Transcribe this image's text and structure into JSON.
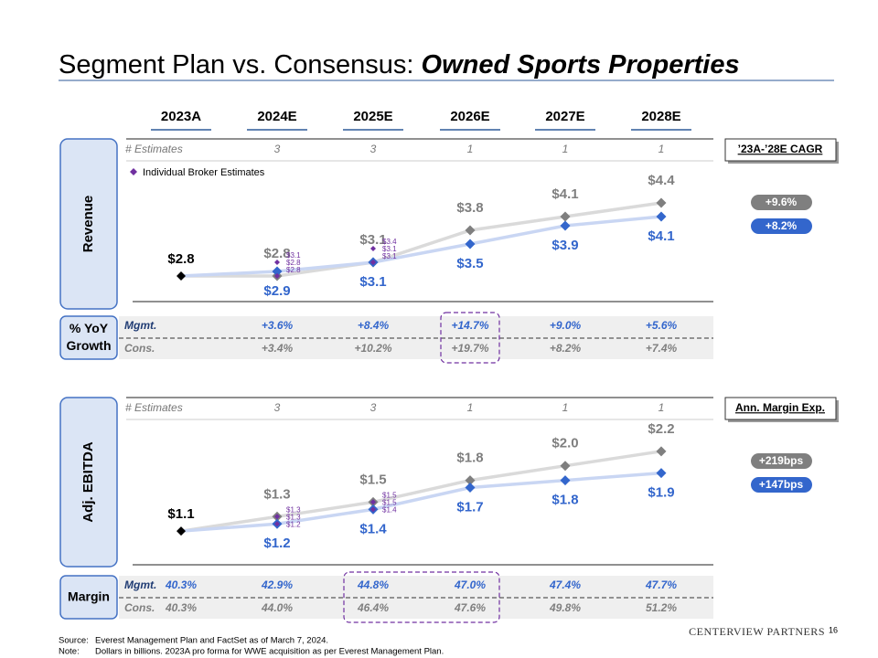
{
  "title": "Segment Plan vs. Consensus: ",
  "title_emphasis": "Owned Sports Properties",
  "columns": [
    "2023A",
    "2024E",
    "2025E",
    "2026E",
    "2027E",
    "2028E"
  ],
  "chart_data": [
    {
      "type": "line",
      "section_label": "Revenue",
      "estimates_label": "# Estimates",
      "estimates": [
        null,
        3,
        3,
        1,
        1,
        1
      ],
      "ylim": [
        2.0,
        4.8
      ],
      "actual": {
        "value": 2.8,
        "label": "$2.8",
        "color": "#000000"
      },
      "series": [
        {
          "color": "#7f7f7f",
          "values": [
            null,
            2.8,
            3.1,
            3.8,
            4.1,
            4.4
          ],
          "value_labels": [
            null,
            "$2.8",
            "$3.1",
            "$3.8",
            "$4.1",
            "$4.4"
          ]
        },
        {
          "color": "#3366cc",
          "values": [
            null,
            2.9,
            3.1,
            3.5,
            3.9,
            4.1
          ],
          "value_labels": [
            null,
            "$2.9",
            "$3.1",
            "$3.5",
            "$3.9",
            "$4.1"
          ]
        }
      ],
      "broker_estimates": {
        "name": "Individual Broker Estimates",
        "color": "#7030a0",
        "values": [
          [],
          [
            3.1,
            2.8,
            2.8
          ],
          [
            3.4,
            3.1,
            3.1
          ],
          [],
          [],
          []
        ],
        "value_labels": [
          [],
          [
            "$3.1",
            "$2.8",
            "$2.8"
          ],
          [
            "$3.4",
            "$3.1",
            "$3.1"
          ],
          [],
          [],
          []
        ]
      },
      "summary": {
        "title": "’23A-’28E CAGR",
        "values": [
          "+9.6%",
          "+8.2%"
        ]
      },
      "table": {
        "box_label": [
          "% YoY",
          "Growth"
        ],
        "highlight": [
          3,
          3
        ],
        "rows": [
          {
            "label": "Mgmt.",
            "values": [
              null,
              "+3.6%",
              "+8.4%",
              "+14.7%",
              "+9.0%",
              "+5.6%"
            ]
          },
          {
            "label": "Cons.",
            "values": [
              null,
              "+3.4%",
              "+10.2%",
              "+19.7%",
              "+8.2%",
              "+7.4%"
            ]
          }
        ]
      }
    },
    {
      "type": "line",
      "section_label": "Adj. EBITDA",
      "estimates_label": "# Estimates",
      "estimates": [
        null,
        3,
        3,
        1,
        1,
        1
      ],
      "ylim": [
        0.8,
        2.5
      ],
      "actual": {
        "value": 1.1,
        "label": "$1.1",
        "color": "#000000"
      },
      "series": [
        {
          "color": "#7f7f7f",
          "values": [
            null,
            1.3,
            1.5,
            1.8,
            2.0,
            2.2
          ],
          "value_labels": [
            null,
            "$1.3",
            "$1.5",
            "$1.8",
            "$2.0",
            "$2.2"
          ]
        },
        {
          "color": "#3366cc",
          "values": [
            null,
            1.2,
            1.4,
            1.7,
            1.8,
            1.9
          ],
          "value_labels": [
            null,
            "$1.2",
            "$1.4",
            "$1.7",
            "$1.8",
            "$1.9"
          ]
        }
      ],
      "broker_estimates": {
        "color": "#7030a0",
        "values": [
          [],
          [
            1.3,
            1.3,
            1.2
          ],
          [
            1.5,
            1.5,
            1.4
          ],
          [],
          [],
          []
        ],
        "value_labels": [
          [],
          [
            "$1.3",
            "$1.3",
            "$1.2"
          ],
          [
            "$1.5",
            "$1.5",
            "$1.4"
          ],
          [],
          [],
          []
        ]
      },
      "summary": {
        "title": "Ann. Margin Exp.",
        "values": [
          "+219bps",
          "+147bps"
        ]
      },
      "table": {
        "box_label": [
          "Margin"
        ],
        "highlight": [
          2,
          3
        ],
        "rows": [
          {
            "label": "Mgmt.",
            "values": [
              "40.3%",
              "42.9%",
              "44.8%",
              "47.0%",
              "47.4%",
              "47.7%"
            ]
          },
          {
            "label": "Cons.",
            "values": [
              "40.3%",
              "44.0%",
              "46.4%",
              "47.6%",
              "49.8%",
              "51.2%"
            ]
          }
        ]
      }
    }
  ],
  "footer": {
    "source_label": "Source:",
    "source": "Everest Management Plan and FactSet as of March 7, 2024.",
    "note_label": "Note:",
    "note": "Dollars in billions. 2023A pro forma for WWE acquisition as per Everest Management Plan."
  },
  "logo": "CENTERVIEW PARTNERS",
  "page_number": "16"
}
